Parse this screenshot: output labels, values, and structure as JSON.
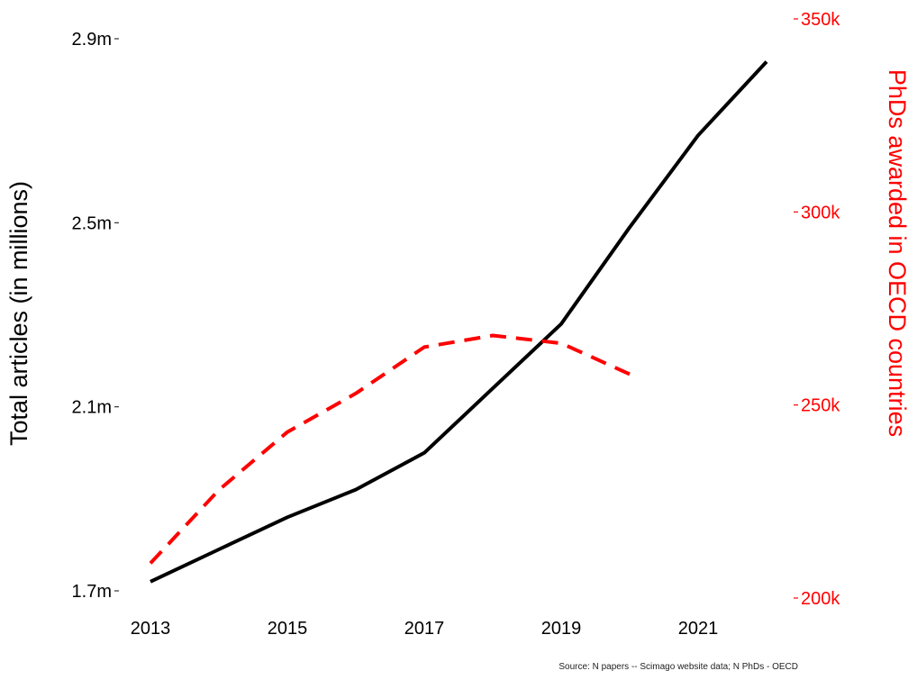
{
  "chart_data": {
    "type": "line",
    "title": "",
    "source": "Source: N papers -- Scimago website data; N PhDs - OECD",
    "xlim": [
      2013,
      2022
    ],
    "x_ticks": [
      2013,
      2015,
      2017,
      2019,
      2021
    ],
    "x_tick_labels": [
      "2013",
      "2015",
      "2017",
      "2019",
      "2021"
    ],
    "y_left": {
      "label": "Total articles (in millions)",
      "lim": [
        1.7,
        2.9
      ],
      "ticks": [
        1.7,
        2.1,
        2.5,
        2.9
      ],
      "tick_labels": [
        "1.7m",
        "2.1m",
        "2.5m",
        "2.9m"
      ],
      "color": "#000000"
    },
    "y_right": {
      "label": "PhDs awarded in OECD countries",
      "lim": [
        200000,
        350000
      ],
      "ticks": [
        200000,
        250000,
        300000,
        350000
      ],
      "tick_labels": [
        "200k",
        "250k",
        "300k",
        "350k"
      ],
      "color": "#ff0000"
    },
    "series": [
      {
        "axis": "left",
        "style": "solid",
        "color": "#000000",
        "x": [
          2013,
          2014,
          2015,
          2016,
          2017,
          2018,
          2019,
          2020,
          2021,
          2022
        ],
        "values": [
          1.72,
          1.79,
          1.86,
          1.92,
          2.0,
          2.14,
          2.28,
          2.49,
          2.69,
          2.85
        ]
      },
      {
        "axis": "right",
        "style": "dashed",
        "color": "#ff0000",
        "x": [
          2013,
          2014,
          2015,
          2016,
          2017,
          2018,
          2019,
          2020
        ],
        "values": [
          209000,
          228000,
          243000,
          253000,
          265000,
          268000,
          266000,
          258000
        ]
      }
    ],
    "grid": false,
    "legend": "none"
  }
}
